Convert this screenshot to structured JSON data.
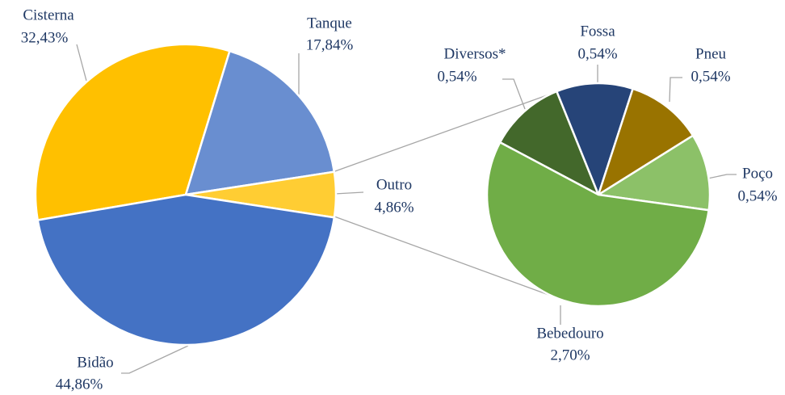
{
  "chart_data": [
    {
      "type": "pie",
      "categories": [
        "Cisterna",
        "Tanque",
        "Outro",
        "Bidão"
      ],
      "values": [
        32.43,
        17.84,
        4.86,
        44.86
      ],
      "value_labels": [
        "32,43%",
        "17,84%",
        "4,86%",
        "44,86%"
      ],
      "colors": [
        "#ffc000",
        "#698ed0",
        "#ffcd33",
        "#4472c4"
      ]
    },
    {
      "type": "pie",
      "categories": [
        "Diversos*",
        "Fossa",
        "Pneu",
        "Poço",
        "Bebedouro"
      ],
      "values": [
        0.54,
        0.54,
        0.54,
        0.54,
        2.7
      ],
      "value_labels": [
        "0,54%",
        "0,54%",
        "0,54%",
        "0,54%",
        "2,70%"
      ],
      "colors": [
        "#43682b",
        "#264478",
        "#997300",
        "#8cc168",
        "#70ad47"
      ]
    }
  ]
}
